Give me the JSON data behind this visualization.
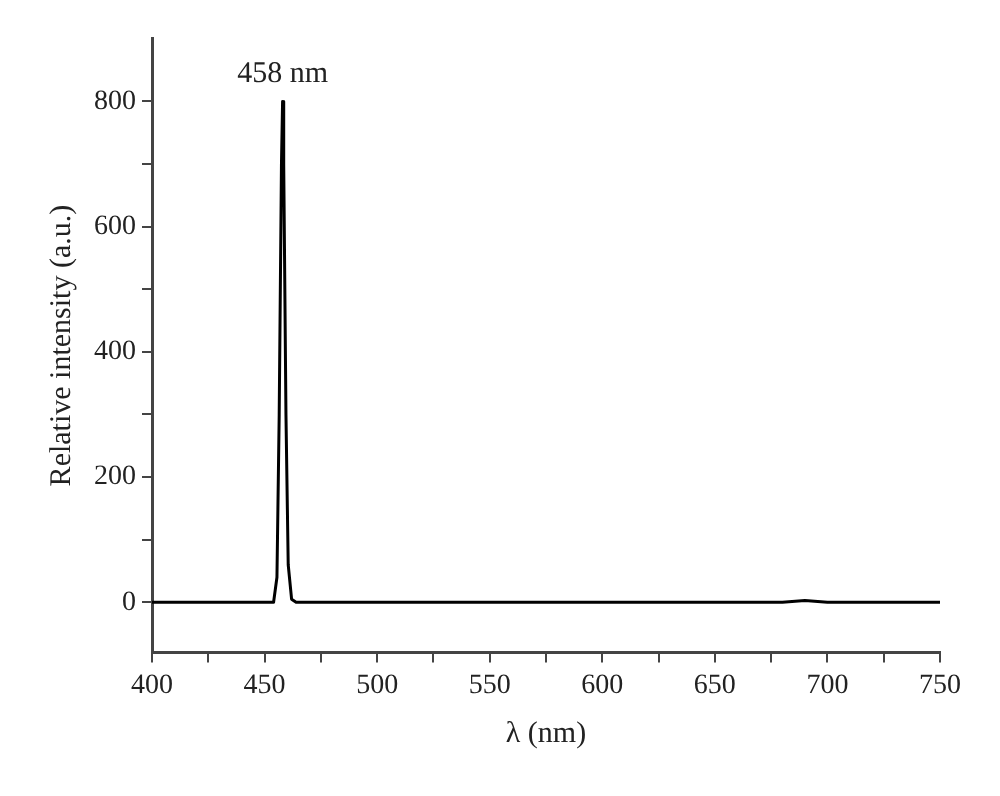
{
  "chart_data": {
    "type": "line",
    "xlabel": "λ (nm)",
    "ylabel": "Relative intensity (a.u.)",
    "x": [
      400,
      454,
      455.5,
      456.5,
      457.5,
      458,
      458.5,
      459.5,
      460.5,
      462,
      464,
      680,
      690,
      700,
      750
    ],
    "series": [
      {
        "color": "#000000",
        "values": [
          0,
          0,
          40,
          300,
          700,
          800,
          700,
          300,
          60,
          5,
          0,
          0,
          3,
          0,
          0
        ]
      }
    ],
    "xlim": [
      400,
      750
    ],
    "xticks": [
      400,
      {
        "value": 425,
        "label": null
      },
      450,
      {
        "value": 475,
        "label": null
      },
      500,
      {
        "value": 525,
        "label": null
      },
      550,
      {
        "value": 575,
        "label": null
      },
      600,
      {
        "value": 625,
        "label": null
      },
      650,
      {
        "value": 675,
        "label": null
      },
      700,
      {
        "value": 725,
        "label": null
      },
      750
    ],
    "ylim": [
      -80,
      900
    ],
    "yticks": [
      0,
      {
        "value": 100,
        "label": null
      },
      200,
      {
        "value": 300,
        "label": null
      },
      400,
      {
        "value": 500,
        "label": null
      },
      600,
      {
        "value": 700,
        "label": null
      },
      800
    ],
    "annotations": [
      {
        "text": "458 nm",
        "x": 458,
        "y": 800
      }
    ],
    "grid": false,
    "legend": false,
    "marker": "none",
    "line_style": "solid"
  }
}
